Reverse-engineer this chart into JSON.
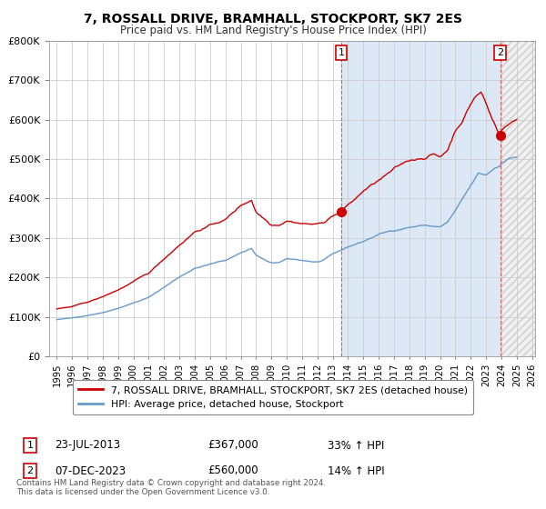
{
  "title": "7, ROSSALL DRIVE, BRAMHALL, STOCKPORT, SK7 2ES",
  "subtitle": "Price paid vs. HM Land Registry's House Price Index (HPI)",
  "legend_label_red": "7, ROSSALL DRIVE, BRAMHALL, STOCKPORT, SK7 2ES (detached house)",
  "legend_label_blue": "HPI: Average price, detached house, Stockport",
  "annotation1_label": "1",
  "annotation1_date": "23-JUL-2013",
  "annotation1_price": "£367,000",
  "annotation1_hpi": "33% ↑ HPI",
  "annotation2_label": "2",
  "annotation2_date": "07-DEC-2023",
  "annotation2_price": "£560,000",
  "annotation2_hpi": "14% ↑ HPI",
  "footer": "Contains HM Land Registry data © Crown copyright and database right 2024.\nThis data is licensed under the Open Government Licence v3.0.",
  "ylim": [
    0,
    800000
  ],
  "yticks": [
    0,
    100000,
    200000,
    300000,
    400000,
    500000,
    600000,
    700000,
    800000
  ],
  "color_red": "#cc0000",
  "color_blue": "#6699cc",
  "color_grid": "#cccccc",
  "color_bg": "#ffffff",
  "color_shade": "#dce8f5",
  "vline1_x": 2013.55,
  "vline2_x": 2023.92,
  "marker1_x": 2013.55,
  "marker1_y": 367000,
  "marker2_x": 2023.92,
  "marker2_y": 560000,
  "xmin": 1994.5,
  "xmax": 2026.2
}
